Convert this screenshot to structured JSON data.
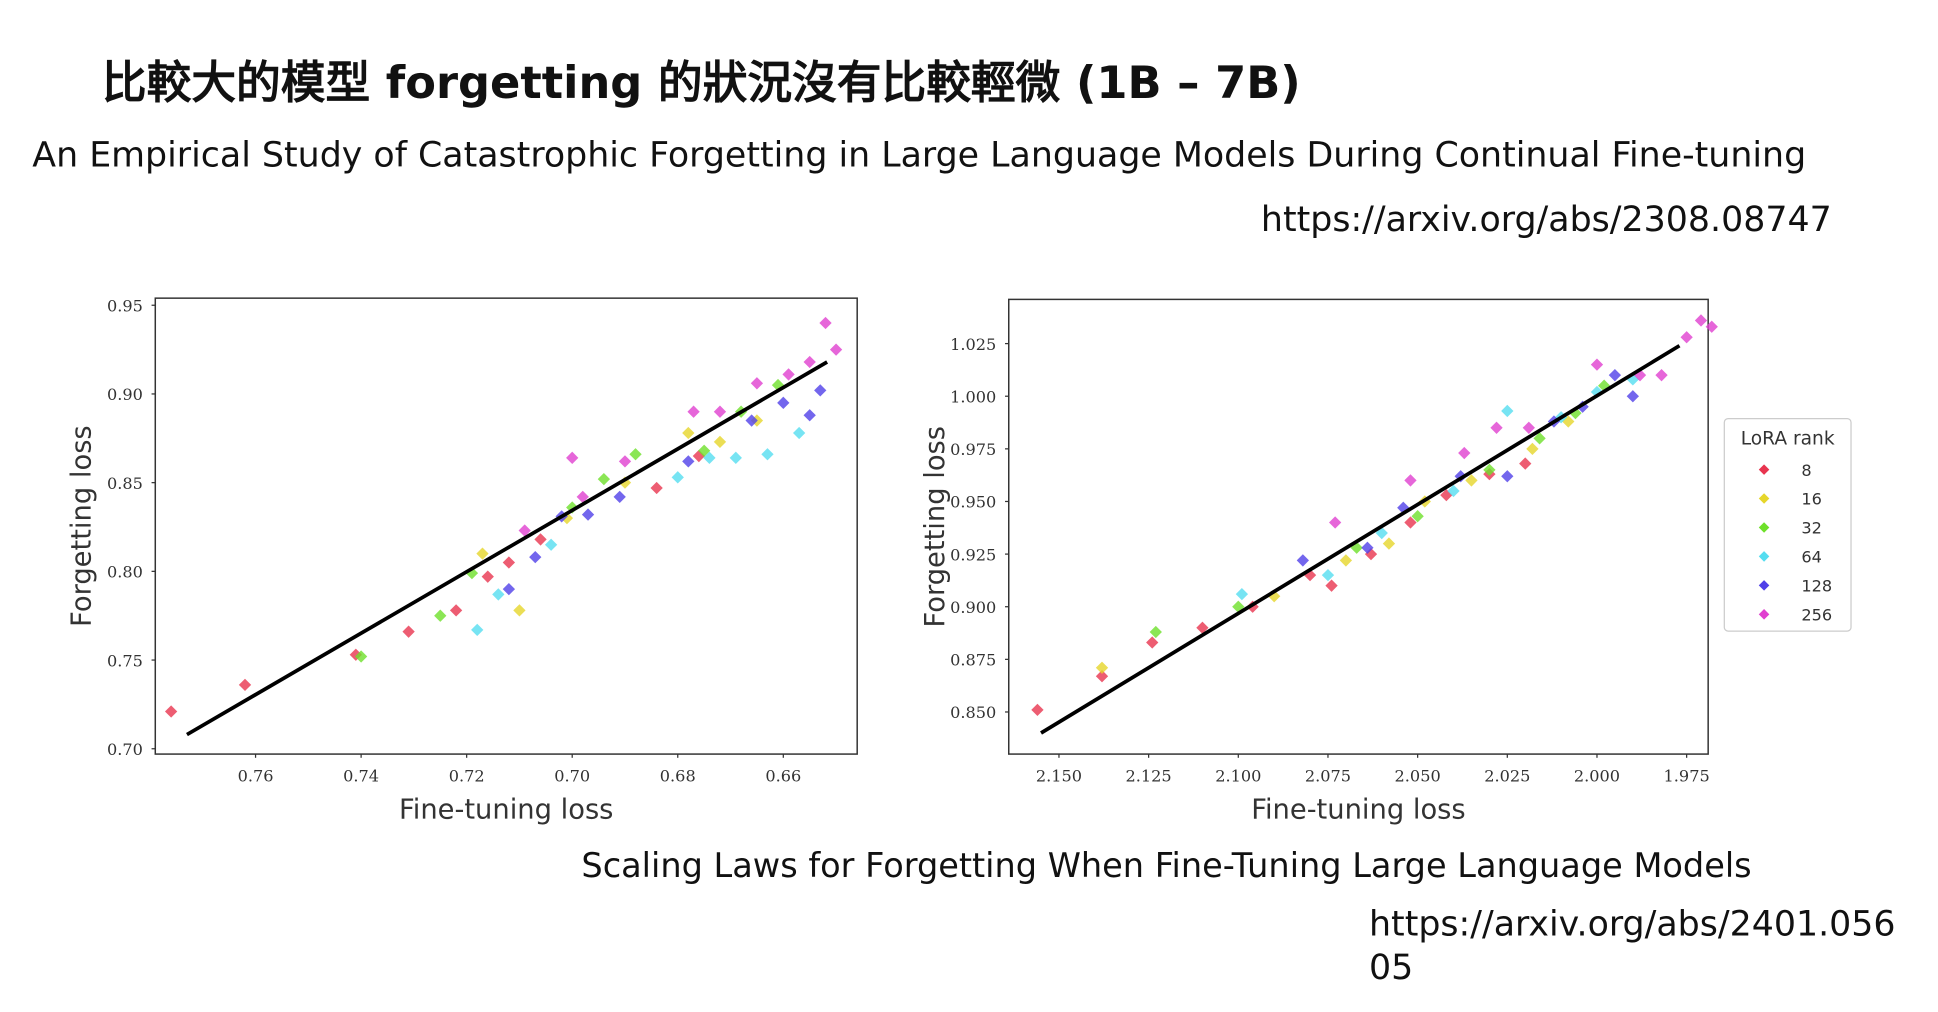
{
  "header": {
    "title": "比較大的模型 forgetting 的狀況沒有比較輕微 (1B – 7B)",
    "paper_1": "An Empirical Study of Catastrophic Forgetting in Large Language Models During Continual Fine-tuning",
    "url_1": "https://arxiv.org/abs/2308.08747",
    "paper_2": "Scaling Laws for Forgetting When Fine-Tuning Large Language Models",
    "url_2": "https://arxiv.org/abs/2401.05605"
  },
  "chart_data": [
    {
      "type": "scatter",
      "xlabel": "Fine-tuning loss",
      "ylabel": "Forgetting loss",
      "xlim": [
        0.779,
        0.646
      ],
      "ylim": [
        0.697,
        0.954
      ],
      "xticks": [
        0.76,
        0.74,
        0.72,
        {
          "value": 0.7,
          "label": "0.70"
        },
        0.68,
        0.66
      ],
      "yticks": [
        0.95,
        {
          "value": 0.9,
          "label": "0.90"
        },
        0.85,
        {
          "value": 0.8,
          "label": "0.80"
        },
        0.75,
        {
          "value": 0.7,
          "label": "0.70"
        }
      ],
      "fit_line": {
        "color": "#000000",
        "x": [
          0.773,
          0.6517
        ],
        "values": [
          0.708,
          0.918
        ]
      },
      "series": [
        {
          "color": "#e8344f",
          "x": [
            0.776,
            0.762,
            0.741,
            0.731,
            0.722,
            0.716,
            0.712,
            0.706,
            0.684,
            0.676
          ],
          "values": [
            0.721,
            0.736,
            0.753,
            0.766,
            0.778,
            0.797,
            0.805,
            0.818,
            0.847,
            0.865
          ]
        },
        {
          "color": "#e6d62b",
          "x": [
            0.71,
            0.717,
            0.701,
            0.69,
            0.678,
            0.672,
            0.665
          ],
          "values": [
            0.778,
            0.81,
            0.83,
            0.85,
            0.878,
            0.873,
            0.885
          ]
        },
        {
          "color": "#6ee02a",
          "x": [
            0.74,
            0.725,
            0.719,
            0.7,
            0.694,
            0.688,
            0.675,
            0.668,
            0.661
          ],
          "values": [
            0.752,
            0.775,
            0.799,
            0.836,
            0.852,
            0.866,
            0.868,
            0.89,
            0.905
          ]
        },
        {
          "color": "#55ddf0",
          "x": [
            0.718,
            0.714,
            0.704,
            0.68,
            0.674,
            0.669,
            0.663,
            0.657
          ],
          "values": [
            0.767,
            0.787,
            0.815,
            0.853,
            0.864,
            0.864,
            0.866,
            0.878
          ]
        },
        {
          "color": "#5040e8",
          "x": [
            0.712,
            0.707,
            0.702,
            0.697,
            0.691,
            0.678,
            0.666,
            0.66,
            0.655,
            0.653
          ],
          "values": [
            0.79,
            0.808,
            0.831,
            0.832,
            0.842,
            0.862,
            0.885,
            0.895,
            0.888,
            0.902
          ]
        },
        {
          "color": "#e040d0",
          "x": [
            0.709,
            0.7,
            0.698,
            0.69,
            0.677,
            0.672,
            0.665,
            0.659,
            0.655,
            0.652,
            0.65
          ],
          "values": [
            0.823,
            0.864,
            0.842,
            0.862,
            0.89,
            0.89,
            0.906,
            0.911,
            0.918,
            0.94,
            0.925
          ]
        }
      ]
    },
    {
      "type": "scatter",
      "xlabel": "Fine-tuning loss",
      "ylabel": "Forgetting loss",
      "xlim": [
        2.164,
        1.969
      ],
      "ylim": [
        0.83,
        1.046
      ],
      "xticks": [
        {
          "value": 2.15,
          "label": "2.150"
        },
        2.125,
        {
          "value": 2.1,
          "label": "2.100"
        },
        2.075,
        {
          "value": 2.05,
          "label": "2.050"
        },
        2.025,
        {
          "value": 2.0,
          "label": "2.000"
        },
        1.975
      ],
      "yticks": [
        1.025,
        {
          "value": 1.0,
          "label": "1.000"
        },
        0.975,
        {
          "value": 0.95,
          "label": "0.950"
        },
        0.925,
        {
          "value": 0.9,
          "label": "0.900"
        },
        0.875,
        {
          "value": 0.85,
          "label": "0.850"
        }
      ],
      "legend": "outside right",
      "legend_title": "LoRA rank",
      "fit_line": {
        "color": "#000000",
        "x": [
          2.155,
          1.977
        ],
        "values": [
          0.84,
          1.024
        ]
      },
      "series": [
        {
          "name": "8",
          "color": "#e8344f",
          "x": [
            2.156,
            2.138,
            2.124,
            2.11,
            2.096,
            2.08,
            2.074,
            2.063,
            2.052,
            2.042,
            2.03,
            2.02
          ],
          "values": [
            0.851,
            0.867,
            0.883,
            0.89,
            0.9,
            0.915,
            0.91,
            0.925,
            0.94,
            0.953,
            0.963,
            0.968
          ]
        },
        {
          "name": "16",
          "color": "#e6d62b",
          "x": [
            2.138,
            2.09,
            2.07,
            2.058,
            2.048,
            2.035,
            2.018,
            2.008
          ],
          "values": [
            0.871,
            0.905,
            0.922,
            0.93,
            0.95,
            0.96,
            0.975,
            0.988
          ]
        },
        {
          "name": "32",
          "color": "#6ee02a",
          "x": [
            2.123,
            2.1,
            2.067,
            2.05,
            2.03,
            2.016,
            2.006,
            1.998
          ],
          "values": [
            0.888,
            0.9,
            0.928,
            0.943,
            0.965,
            0.98,
            0.992,
            1.005
          ]
        },
        {
          "name": "64",
          "color": "#55ddf0",
          "x": [
            2.099,
            2.075,
            2.06,
            2.04,
            2.025,
            2.01,
            2.0,
            1.99
          ],
          "values": [
            0.906,
            0.915,
            0.935,
            0.955,
            0.993,
            0.99,
            1.002,
            1.008
          ]
        },
        {
          "name": "128",
          "color": "#5040e8",
          "x": [
            2.082,
            2.064,
            2.054,
            2.038,
            2.025,
            2.012,
            2.004,
            1.995,
            1.99
          ],
          "values": [
            0.922,
            0.928,
            0.947,
            0.962,
            0.962,
            0.988,
            0.995,
            1.01,
            1.0
          ]
        },
        {
          "name": "256",
          "color": "#e040d0",
          "x": [
            2.073,
            2.052,
            2.037,
            2.028,
            2.019,
            2.0,
            1.988,
            1.982,
            1.975,
            1.971,
            1.968
          ],
          "values": [
            0.94,
            0.96,
            0.973,
            0.985,
            0.985,
            1.015,
            1.01,
            1.01,
            1.028,
            1.036,
            1.033
          ]
        }
      ]
    }
  ]
}
